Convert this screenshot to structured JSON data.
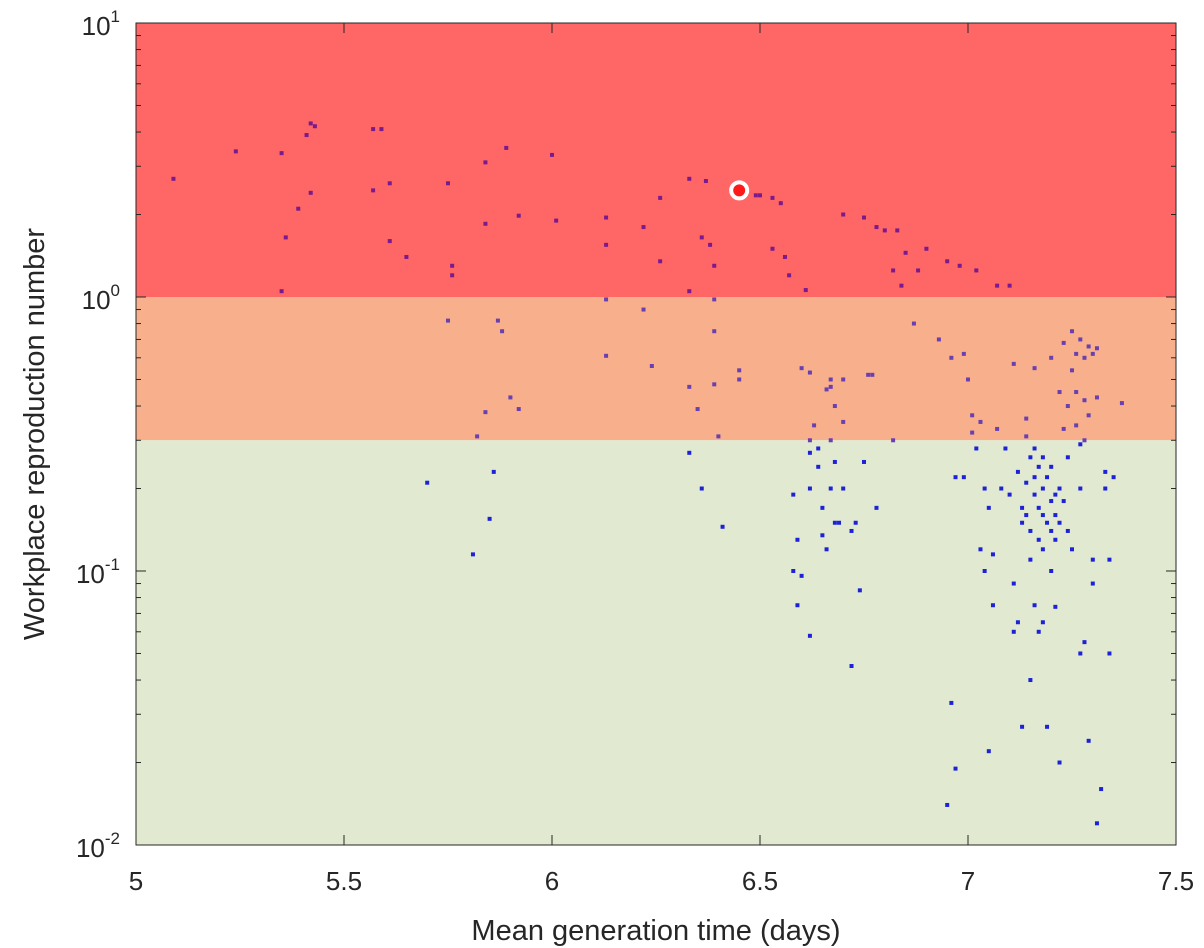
{
  "chart_data": {
    "type": "scatter",
    "title": "",
    "xlabel": "Mean generation time (days)",
    "ylabel": "Workplace reproduction number",
    "xlim": [
      5,
      7.5
    ],
    "ylim": [
      0.01,
      10
    ],
    "y_scale": "log",
    "x_ticks": [
      5,
      5.5,
      6,
      6.5,
      7,
      7.5
    ],
    "x_tick_labels": [
      "5",
      "5.5",
      "6",
      "6.5",
      "7",
      "7.5"
    ],
    "y_ticks": [
      {
        "value": 0.01,
        "base": "10",
        "exp": "-2"
      },
      {
        "value": 0.1,
        "base": "10",
        "exp": "-1"
      },
      {
        "value": 1,
        "base": "10",
        "exp": "0"
      },
      {
        "value": 10,
        "base": "10",
        "exp": "1"
      }
    ],
    "bands": [
      {
        "from": 1,
        "to": 10,
        "color": "#ff6666"
      },
      {
        "from": 0.3,
        "to": 1,
        "color": "#f8b08c"
      },
      {
        "from": 0.01,
        "to": 0.3,
        "color": "#e1ead0"
      }
    ],
    "point_colors": {
      "high": "#7a1a8c",
      "mid": "#6a3fb0",
      "low": "#1d22d6"
    },
    "highlight": {
      "x": 6.45,
      "y": 2.45,
      "fill": "#ff1a1a",
      "ring": "#ffffff"
    },
    "points": [
      [
        5.09,
        2.7
      ],
      [
        5.24,
        3.4
      ],
      [
        5.35,
        3.35
      ],
      [
        5.36,
        1.65
      ],
      [
        5.35,
        1.05
      ],
      [
        5.39,
        2.1
      ],
      [
        5.43,
        4.2
      ],
      [
        5.42,
        4.3
      ],
      [
        5.41,
        3.9
      ],
      [
        5.42,
        2.4
      ],
      [
        5.57,
        4.1
      ],
      [
        5.59,
        4.1
      ],
      [
        5.57,
        2.45
      ],
      [
        5.61,
        2.6
      ],
      [
        5.61,
        1.6
      ],
      [
        5.65,
        1.4
      ],
      [
        5.7,
        0.21
      ],
      [
        5.75,
        2.6
      ],
      [
        5.76,
        1.3
      ],
      [
        5.76,
        1.2
      ],
      [
        5.75,
        0.82
      ],
      [
        5.81,
        0.115
      ],
      [
        5.82,
        0.31
      ],
      [
        5.84,
        3.1
      ],
      [
        5.84,
        1.85
      ],
      [
        5.84,
        0.38
      ],
      [
        5.85,
        0.155
      ],
      [
        5.86,
        0.23
      ],
      [
        5.87,
        0.82
      ],
      [
        5.88,
        0.75
      ],
      [
        5.89,
        3.5
      ],
      [
        5.9,
        0.43
      ],
      [
        5.92,
        0.39
      ],
      [
        5.92,
        1.98
      ],
      [
        6.0,
        3.3
      ],
      [
        6.01,
        1.9
      ],
      [
        6.13,
        1.95
      ],
      [
        6.13,
        1.55
      ],
      [
        6.13,
        0.98
      ],
      [
        6.13,
        0.61
      ],
      [
        6.22,
        1.8
      ],
      [
        6.22,
        0.9
      ],
      [
        6.24,
        0.56
      ],
      [
        6.26,
        2.3
      ],
      [
        6.26,
        1.35
      ],
      [
        6.33,
        2.7
      ],
      [
        6.33,
        1.05
      ],
      [
        6.33,
        0.47
      ],
      [
        6.33,
        0.27
      ],
      [
        6.35,
        0.39
      ],
      [
        6.36,
        1.65
      ],
      [
        6.36,
        0.2
      ],
      [
        6.37,
        2.65
      ],
      [
        6.38,
        1.55
      ],
      [
        6.39,
        1.3
      ],
      [
        6.39,
        0.98
      ],
      [
        6.39,
        0.75
      ],
      [
        6.39,
        0.48
      ],
      [
        6.4,
        0.31
      ],
      [
        6.41,
        0.145
      ],
      [
        6.45,
        0.54
      ],
      [
        6.45,
        0.5
      ],
      [
        6.49,
        2.35
      ],
      [
        6.5,
        2.35
      ],
      [
        6.53,
        2.3
      ],
      [
        6.53,
        1.5
      ],
      [
        6.56,
        1.4
      ],
      [
        6.57,
        1.2
      ],
      [
        6.58,
        0.19
      ],
      [
        6.58,
        0.1
      ],
      [
        6.59,
        0.075
      ],
      [
        6.59,
        0.13
      ],
      [
        6.6,
        0.55
      ],
      [
        6.6,
        0.096
      ],
      [
        6.61,
        1.06
      ],
      [
        6.62,
        0.3
      ],
      [
        6.62,
        0.27
      ],
      [
        6.62,
        0.2
      ],
      [
        6.62,
        0.058
      ],
      [
        6.63,
        0.34
      ],
      [
        6.64,
        0.28
      ],
      [
        6.64,
        0.24
      ],
      [
        6.65,
        0.17
      ],
      [
        6.65,
        0.135
      ],
      [
        6.66,
        0.12
      ],
      [
        6.66,
        0.46
      ],
      [
        6.67,
        0.5
      ],
      [
        6.67,
        0.47
      ],
      [
        6.67,
        0.3
      ],
      [
        6.67,
        0.2
      ],
      [
        6.68,
        0.4
      ],
      [
        6.68,
        0.25
      ],
      [
        6.68,
        0.15
      ],
      [
        6.69,
        0.15
      ],
      [
        6.7,
        0.2
      ],
      [
        6.7,
        0.35
      ],
      [
        6.7,
        0.5
      ],
      [
        6.72,
        0.14
      ],
      [
        6.72,
        0.045
      ],
      [
        6.73,
        0.15
      ],
      [
        6.74,
        0.085
      ],
      [
        6.75,
        0.25
      ],
      [
        6.76,
        0.52
      ],
      [
        6.77,
        0.52
      ],
      [
        6.78,
        0.17
      ],
      [
        6.78,
        1.8
      ],
      [
        6.8,
        1.75
      ],
      [
        6.82,
        1.25
      ],
      [
        6.82,
        0.3
      ],
      [
        6.84,
        1.1
      ],
      [
        6.85,
        1.45
      ],
      [
        6.87,
        0.8
      ],
      [
        6.88,
        1.25
      ],
      [
        6.9,
        1.5
      ],
      [
        6.93,
        0.7
      ],
      [
        6.95,
        1.35
      ],
      [
        6.95,
        0.014
      ],
      [
        6.96,
        0.033
      ],
      [
        6.97,
        0.019
      ],
      [
        6.97,
        0.22
      ],
      [
        6.98,
        1.3
      ],
      [
        6.99,
        0.62
      ],
      [
        6.99,
        0.22
      ],
      [
        7.0,
        0.5
      ],
      [
        7.01,
        0.37
      ],
      [
        7.02,
        1.25
      ],
      [
        7.02,
        0.28
      ],
      [
        7.03,
        0.35
      ],
      [
        7.03,
        0.12
      ],
      [
        7.04,
        0.2
      ],
      [
        7.04,
        0.1
      ],
      [
        7.05,
        0.17
      ],
      [
        7.05,
        0.022
      ],
      [
        7.06,
        0.075
      ],
      [
        7.06,
        0.115
      ],
      [
        7.07,
        0.33
      ],
      [
        7.08,
        0.2
      ],
      [
        7.09,
        0.28
      ],
      [
        7.1,
        0.19
      ],
      [
        7.1,
        1.1
      ],
      [
        7.11,
        0.09
      ],
      [
        7.11,
        0.06
      ],
      [
        7.12,
        0.23
      ],
      [
        7.12,
        0.065
      ],
      [
        7.13,
        0.17
      ],
      [
        7.13,
        0.15
      ],
      [
        7.13,
        0.027
      ],
      [
        7.14,
        0.31
      ],
      [
        7.14,
        0.21
      ],
      [
        7.14,
        0.16
      ],
      [
        7.15,
        0.26
      ],
      [
        7.15,
        0.14
      ],
      [
        7.15,
        0.11
      ],
      [
        7.15,
        0.04
      ],
      [
        7.16,
        0.28
      ],
      [
        7.16,
        0.22
      ],
      [
        7.16,
        0.19
      ],
      [
        7.16,
        0.075
      ],
      [
        7.16,
        0.55
      ],
      [
        7.17,
        0.24
      ],
      [
        7.17,
        0.17
      ],
      [
        7.17,
        0.13
      ],
      [
        7.17,
        0.06
      ],
      [
        7.18,
        0.26
      ],
      [
        7.18,
        0.2
      ],
      [
        7.18,
        0.16
      ],
      [
        7.18,
        0.12
      ],
      [
        7.18,
        0.065
      ],
      [
        7.19,
        0.22
      ],
      [
        7.19,
        0.15
      ],
      [
        7.19,
        0.027
      ],
      [
        7.2,
        0.24
      ],
      [
        7.2,
        0.18
      ],
      [
        7.2,
        0.14
      ],
      [
        7.2,
        0.1
      ],
      [
        7.2,
        0.6
      ],
      [
        7.21,
        0.19
      ],
      [
        7.21,
        0.16
      ],
      [
        7.21,
        0.13
      ],
      [
        7.21,
        0.074
      ],
      [
        7.22,
        0.45
      ],
      [
        7.22,
        0.2
      ],
      [
        7.22,
        0.15
      ],
      [
        7.22,
        0.02
      ],
      [
        7.23,
        0.68
      ],
      [
        7.23,
        0.33
      ],
      [
        7.23,
        0.18
      ],
      [
        7.24,
        0.14
      ],
      [
        7.24,
        0.4
      ],
      [
        7.25,
        0.12
      ],
      [
        7.25,
        0.75
      ],
      [
        7.25,
        0.54
      ],
      [
        7.26,
        0.62
      ],
      [
        7.26,
        0.45
      ],
      [
        7.26,
        0.34
      ],
      [
        7.27,
        0.7
      ],
      [
        7.27,
        0.29
      ],
      [
        7.27,
        0.2
      ],
      [
        7.27,
        0.05
      ],
      [
        7.28,
        0.6
      ],
      [
        7.28,
        0.42
      ],
      [
        7.28,
        0.3
      ],
      [
        7.28,
        0.055
      ],
      [
        7.29,
        0.66
      ],
      [
        7.29,
        0.37
      ],
      [
        7.29,
        0.024
      ],
      [
        7.3,
        0.62
      ],
      [
        7.3,
        0.11
      ],
      [
        7.3,
        0.09
      ],
      [
        7.31,
        0.65
      ],
      [
        7.31,
        0.43
      ],
      [
        7.31,
        0.012
      ],
      [
        7.32,
        0.016
      ],
      [
        7.33,
        0.23
      ],
      [
        7.33,
        0.2
      ],
      [
        7.34,
        0.05
      ],
      [
        7.34,
        0.11
      ],
      [
        7.35,
        0.22
      ],
      [
        7.37,
        0.41
      ],
      [
        7.07,
        1.1
      ],
      [
        6.83,
        1.75
      ],
      [
        6.75,
        1.95
      ],
      [
        6.7,
        2.0
      ],
      [
        6.55,
        2.2
      ],
      [
        6.62,
        0.53
      ],
      [
        7.01,
        0.32
      ],
      [
        6.96,
        0.6
      ],
      [
        7.14,
        0.36
      ],
      [
        7.11,
        0.57
      ],
      [
        7.24,
        0.26
      ]
    ]
  }
}
